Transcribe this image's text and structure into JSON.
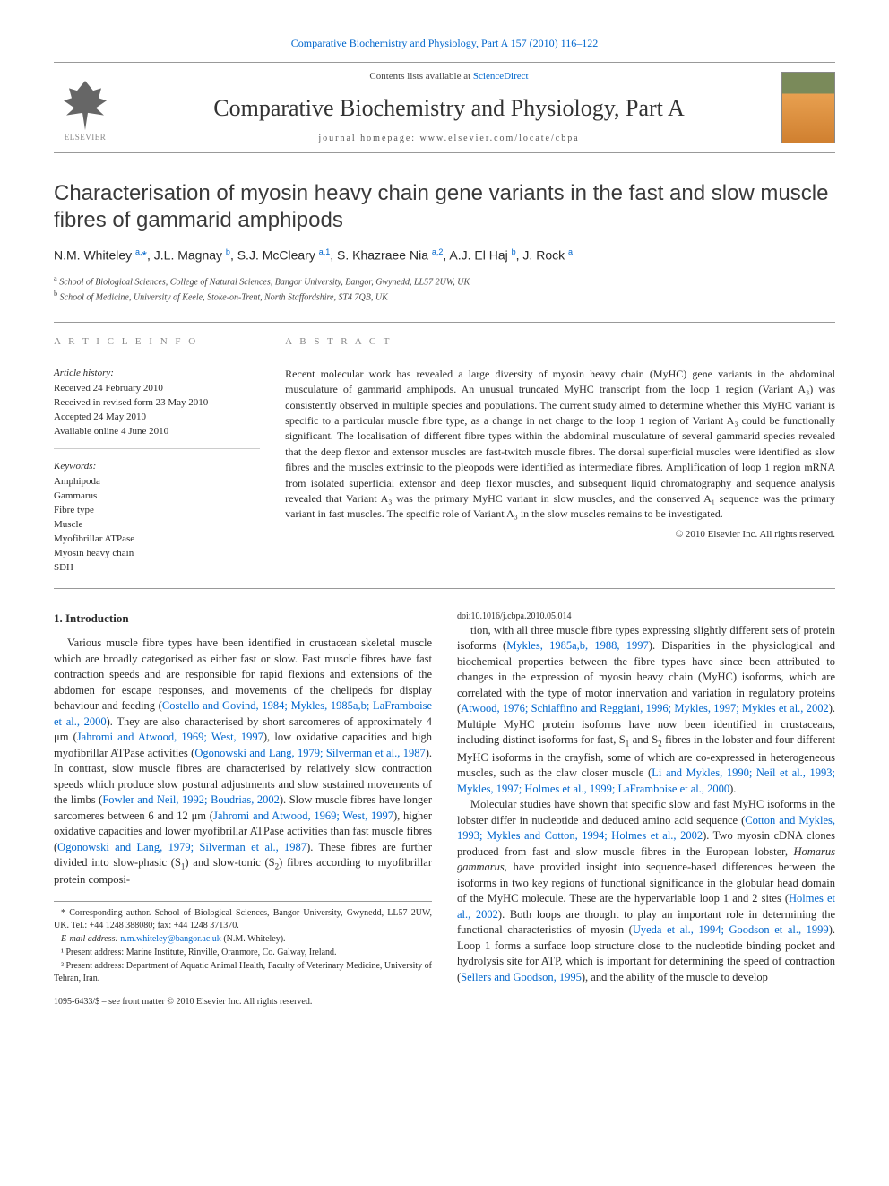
{
  "top": {
    "journal_link_text": "Comparative Biochemistry and Physiology, Part A 157 (2010) 116–122",
    "contents_prefix": "Contents lists available at ",
    "contents_link": "ScienceDirect",
    "journal_name": "Comparative Biochemistry and Physiology, Part A",
    "homepage_prefix": "journal homepage: ",
    "homepage": "www.elsevier.com/locate/cbpa",
    "elsevier_label": "ELSEVIER"
  },
  "title": "Characterisation of myosin heavy chain gene variants in the fast and slow muscle fibres of gammarid amphipods",
  "authors_html": "N.M. Whiteley <sup>a,</sup><span class='star'>*</span>, J.L. Magnay <sup>b</sup>, S.J. McCleary <sup>a,1</sup>, S. Khazraee Nia <sup>a,2</sup>, A.J. El Haj <sup>b</sup>, J. Rock <sup>a</sup>",
  "affiliations": [
    {
      "marker": "a",
      "text": "School of Biological Sciences, College of Natural Sciences, Bangor University, Bangor, Gwynedd, LL57 2UW, UK"
    },
    {
      "marker": "b",
      "text": "School of Medicine, University of Keele, Stoke-on-Trent, North Staffordshire, ST4 7QB, UK"
    }
  ],
  "info": {
    "article_info_label": "A R T I C L E   I N F O",
    "abstract_label": "A B S T R A C T",
    "history_head": "Article history:",
    "history": [
      "Received 24 February 2010",
      "Received in revised form 23 May 2010",
      "Accepted 24 May 2010",
      "Available online 4 June 2010"
    ],
    "keywords_head": "Keywords:",
    "keywords": [
      "Amphipoda",
      "Gammarus",
      "Fibre type",
      "Muscle",
      "Myofibrillar ATPase",
      "Myosin heavy chain",
      "SDH"
    ]
  },
  "abstract": "Recent molecular work has revealed a large diversity of myosin heavy chain (MyHC) gene variants in the abdominal musculature of gammarid amphipods. An unusual truncated MyHC transcript from the loop 1 region (Variant A₃) was consistently observed in multiple species and populations. The current study aimed to determine whether this MyHC variant is specific to a particular muscle fibre type, as a change in net charge to the loop 1 region of Variant A₃ could be functionally significant. The localisation of different fibre types within the abdominal musculature of several gammarid species revealed that the deep flexor and extensor muscles are fast-twitch muscle fibres. The dorsal superficial muscles were identified as slow fibres and the muscles extrinsic to the pleopods were identified as intermediate fibres. Amplification of loop 1 region mRNA from isolated superficial extensor and deep flexor muscles, and subsequent liquid chromatography and sequence analysis revealed that Variant A₃ was the primary MyHC variant in slow muscles, and the conserved A₁ sequence was the primary variant in fast muscles. The specific role of Variant A₃ in the slow muscles remains to be investigated.",
  "abstract_copyright": "© 2010 Elsevier Inc. All rights reserved.",
  "intro_head": "1. Introduction",
  "intro_paras": [
    "Various muscle fibre types have been identified in crustacean skeletal muscle which are broadly categorised as either fast or slow. Fast muscle fibres have fast contraction speeds and are responsible for rapid flexions and extensions of the abdomen for escape responses, and movements of the chelipeds for display behaviour and feeding (<span class='ref'>Costello and Govind, 1984; Mykles, 1985a,b; LaFramboise et al., 2000</span>). They are also characterised by short sarcomeres of approximately 4 μm (<span class='ref'>Jahromi and Atwood, 1969; West, 1997</span>), low oxidative capacities and high myofibrillar ATPase activities (<span class='ref'>Ogonowski and Lang, 1979; Silverman et al., 1987</span>). In contrast, slow muscle fibres are characterised by relatively slow contraction speeds which produce slow postural adjustments and slow sustained movements of the limbs (<span class='ref'>Fowler and Neil, 1992; Boudrias, 2002</span>). Slow muscle fibres have longer sarcomeres between 6 and 12 μm (<span class='ref'>Jahromi and Atwood, 1969; West, 1997</span>), higher oxidative capacities and lower myofibrillar ATPase activities than fast muscle fibres (<span class='ref'>Ogonowski and Lang, 1979; Silverman et al., 1987</span>). These fibres are further divided into slow-phasic (S<sub>1</sub>) and slow-tonic (S<sub>2</sub>) fibres according to myofibrillar protein composi-",
    "tion, with all three muscle fibre types expressing slightly different sets of protein isoforms (<span class='ref'>Mykles, 1985a,b, 1988, 1997</span>). Disparities in the physiological and biochemical properties between the fibre types have since been attributed to changes in the expression of myosin heavy chain (MyHC) isoforms, which are correlated with the type of motor innervation and variation in regulatory proteins (<span class='ref'>Atwood, 1976; Schiaffino and Reggiani, 1996; Mykles, 1997; Mykles et al., 2002</span>). Multiple MyHC protein isoforms have now been identified in crustaceans, including distinct isoforms for fast, S<sub>1</sub> and S<sub>2</sub> fibres in the lobster and four different MyHC isoforms in the crayfish, some of which are co-expressed in heterogeneous muscles, such as the claw closer muscle (<span class='ref'>Li and Mykles, 1990; Neil et al., 1993; Mykles, 1997; Holmes et al., 1999; LaFramboise et al., 2000</span>).",
    "Molecular studies have shown that specific slow and fast MyHC isoforms in the lobster differ in nucleotide and deduced amino acid sequence (<span class='ref'>Cotton and Mykles, 1993; Mykles and Cotton, 1994; Holmes et al., 2002</span>). Two myosin cDNA clones produced from fast and slow muscle fibres in the European lobster, <i>Homarus gammarus</i>, have provided insight into sequence-based differences between the isoforms in two key regions of functional significance in the globular head domain of the MyHC molecule. These are the hypervariable loop 1 and 2 sites (<span class='ref'>Holmes et al., 2002</span>). Both loops are thought to play an important role in determining the functional characteristics of myosin (<span class='ref'>Uyeda et al., 1994; Goodson et al., 1999</span>). Loop 1 forms a surface loop structure close to the nucleotide binding pocket and hydrolysis site for ATP, which is important for determining the speed of contraction (<span class='ref'>Sellers and Goodson, 1995</span>), and the ability of the muscle to develop"
  ],
  "footnotes": {
    "corr": "* Corresponding author. School of Biological Sciences, Bangor University, Gwynedd, LL57 2UW, UK. Tel.: +44 1248 388080; fax: +44 1248 371370.",
    "email_prefix": "E-mail address: ",
    "email": "n.m.whiteley@bangor.ac.uk",
    "email_suffix": " (N.M. Whiteley).",
    "fn1": "¹ Present address: Marine Institute, Rinville, Oranmore, Co. Galway, Ireland.",
    "fn2": "² Present address: Department of Aquatic Animal Health, Faculty of Veterinary Medicine, University of Tehran, Iran."
  },
  "bottom": {
    "issn": "1095-6433/$ – see front matter © 2010 Elsevier Inc. All rights reserved.",
    "doi": "doi:10.1016/j.cbpa.2010.05.014"
  },
  "colors": {
    "link": "#0066cc",
    "rule": "#999999",
    "text": "#2a2a2a",
    "muted": "#888888"
  }
}
